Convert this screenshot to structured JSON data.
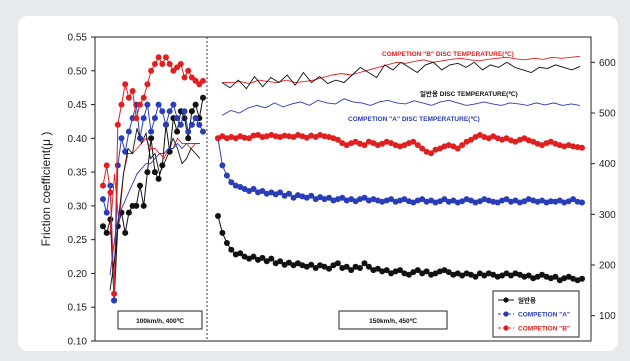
{
  "chart_data": {
    "type": "line",
    "ylabel": "Friction coefficient(μ )",
    "ylim": [
      0.1,
      0.55
    ],
    "yticks": [
      "0.10",
      "0.15",
      "0.20",
      "0.25",
      "0.30",
      "0.35",
      "0.40",
      "0.45",
      "0.50",
      "0.55"
    ],
    "y2lim": [
      50,
      650
    ],
    "y2ticks": [
      "100",
      "200",
      "300",
      "400",
      "500",
      "600"
    ],
    "grid": false,
    "legend_position": "bottom-right",
    "sections": [
      {
        "label": "100km/h, 400℃"
      },
      {
        "label": "150km/h, 450℃"
      }
    ],
    "temperature_labels": [
      {
        "text": "COMPETION \"B\" DISC TEMPERATURE(℃)",
        "color": "#e02020"
      },
      {
        "text": "일반용 DISC TEMPERATURE(℃)",
        "color": "#111111"
      },
      {
        "text": "COMPETION \"A\" DISC TEMPERATURE(℃)",
        "color": "#2a3db8"
      }
    ],
    "legend": [
      {
        "label": "일반용",
        "color": "#111111"
      },
      {
        "label": "COMPETION \"A\"",
        "color": "#2a3db8"
      },
      {
        "label": "COMPETION \"B\"",
        "color": "#e02020"
      }
    ],
    "series": [
      {
        "axis": "friction",
        "color": "#111111",
        "section1": [
          0.27,
          0.26,
          0.28,
          0.16,
          0.27,
          0.29,
          0.26,
          0.29,
          0.3,
          0.3,
          0.33,
          0.3,
          0.35,
          0.4,
          0.35,
          0.34,
          0.36,
          0.42,
          0.38,
          0.43,
          0.41,
          0.44,
          0.43,
          0.4,
          0.44,
          0.45,
          0.43,
          0.46
        ],
        "section2": [
          0.285,
          0.26,
          0.245,
          0.235,
          0.228,
          0.23,
          0.225,
          0.222,
          0.225,
          0.22,
          0.223,
          0.218,
          0.222,
          0.215,
          0.218,
          0.213,
          0.216,
          0.212,
          0.215,
          0.212,
          0.21,
          0.213,
          0.208,
          0.212,
          0.21,
          0.207,
          0.212,
          0.215,
          0.208,
          0.21,
          0.205,
          0.21,
          0.208,
          0.215,
          0.21,
          0.205,
          0.207,
          0.203,
          0.205,
          0.2,
          0.203,
          0.205,
          0.2,
          0.198,
          0.202,
          0.205,
          0.2,
          0.203,
          0.198,
          0.2,
          0.203,
          0.205,
          0.202,
          0.198,
          0.2,
          0.197,
          0.2,
          0.198,
          0.195,
          0.2,
          0.197,
          0.2,
          0.198,
          0.195,
          0.197,
          0.2,
          0.197,
          0.2,
          0.198,
          0.195,
          0.197,
          0.193,
          0.195,
          0.198,
          0.195,
          0.193,
          0.195,
          0.19,
          0.193,
          0.195,
          0.192,
          0.19,
          0.192
        ]
      },
      {
        "axis": "friction",
        "color": "#2a3db8",
        "section1": [
          0.31,
          0.29,
          0.33,
          0.16,
          0.36,
          0.4,
          0.38,
          0.41,
          0.43,
          0.45,
          0.4,
          0.43,
          0.45,
          0.41,
          0.43,
          0.45,
          0.44,
          0.42,
          0.44,
          0.45,
          0.43,
          0.42,
          0.44,
          0.41,
          0.42,
          0.43,
          0.42,
          0.41
        ],
        "section2": [
          0.4,
          0.36,
          0.345,
          0.335,
          0.33,
          0.328,
          0.325,
          0.322,
          0.325,
          0.32,
          0.322,
          0.318,
          0.32,
          0.317,
          0.32,
          0.315,
          0.318,
          0.312,
          0.316,
          0.314,
          0.312,
          0.315,
          0.31,
          0.313,
          0.31,
          0.312,
          0.308,
          0.31,
          0.312,
          0.308,
          0.31,
          0.307,
          0.31,
          0.312,
          0.308,
          0.31,
          0.308,
          0.306,
          0.308,
          0.31,
          0.306,
          0.308,
          0.31,
          0.307,
          0.305,
          0.308,
          0.31,
          0.306,
          0.308,
          0.305,
          0.307,
          0.31,
          0.306,
          0.308,
          0.305,
          0.307,
          0.31,
          0.308,
          0.305,
          0.307,
          0.31,
          0.308,
          0.306,
          0.305,
          0.308,
          0.31,
          0.306,
          0.308,
          0.305,
          0.307,
          0.31,
          0.308,
          0.306,
          0.308,
          0.305,
          0.307,
          0.306,
          0.308,
          0.305,
          0.307,
          0.31,
          0.306,
          0.305
        ]
      },
      {
        "axis": "friction",
        "color": "#e02020",
        "section1": [
          0.33,
          0.36,
          0.32,
          0.17,
          0.42,
          0.45,
          0.48,
          0.46,
          0.47,
          0.43,
          0.45,
          0.46,
          0.48,
          0.5,
          0.51,
          0.52,
          0.51,
          0.52,
          0.51,
          0.5,
          0.505,
          0.51,
          0.49,
          0.5,
          0.49,
          0.485,
          0.48,
          0.485
        ],
        "section2": [
          0.4,
          0.403,
          0.4,
          0.402,
          0.4,
          0.403,
          0.401,
          0.4,
          0.404,
          0.405,
          0.402,
          0.403,
          0.405,
          0.403,
          0.402,
          0.404,
          0.403,
          0.402,
          0.405,
          0.403,
          0.401,
          0.404,
          0.402,
          0.405,
          0.403,
          0.402,
          0.4,
          0.398,
          0.393,
          0.39,
          0.393,
          0.395,
          0.392,
          0.39,
          0.395,
          0.393,
          0.39,
          0.392,
          0.395,
          0.393,
          0.39,
          0.388,
          0.39,
          0.393,
          0.395,
          0.39,
          0.385,
          0.38,
          0.378,
          0.383,
          0.385,
          0.388,
          0.39,
          0.388,
          0.385,
          0.39,
          0.395,
          0.398,
          0.402,
          0.405,
          0.402,
          0.4,
          0.403,
          0.4,
          0.398,
          0.4,
          0.397,
          0.395,
          0.398,
          0.4,
          0.397,
          0.395,
          0.392,
          0.39,
          0.393,
          0.395,
          0.392,
          0.39,
          0.388,
          0.39,
          0.388,
          0.387,
          0.386
        ]
      },
      {
        "axis": "temperature",
        "color": "#e02020",
        "section1": [
          260,
          380,
          280,
          380,
          420,
          420,
          430,
          440,
          450,
          430,
          430,
          420,
          410,
          430,
          430,
          450,
          440,
          440,
          430,
          440,
          440
        ],
        "section2": [
          560,
          560,
          562,
          558,
          565,
          562,
          560,
          565,
          560,
          562,
          565,
          570,
          575,
          578,
          575,
          580,
          585,
          590,
          595,
          600,
          598,
          602,
          605,
          600,
          603,
          606,
          608,
          605,
          603,
          606,
          608,
          610,
          607,
          605,
          608,
          606,
          610,
          608,
          610,
          612
        ]
      },
      {
        "axis": "temperature",
        "color": "#111111",
        "section1": [
          150,
          210,
          300,
          380,
          430,
          420,
          470,
          440,
          460,
          410,
          420,
          380,
          400,
          420,
          450,
          430,
          400,
          410,
          430,
          420,
          410
        ],
        "section2": [
          560,
          550,
          565,
          548,
          572,
          552,
          570,
          560,
          575,
          555,
          580,
          560,
          572,
          558,
          565,
          560,
          575,
          590,
          580,
          570,
          595,
          585,
          600,
          590,
          580,
          595,
          600,
          585,
          595,
          598,
          590,
          600,
          585,
          595,
          590,
          600,
          590,
          585,
          580,
          590,
          588,
          595,
          590,
          585,
          592
        ]
      },
      {
        "axis": "temperature",
        "color": "#2a3db8",
        "section1": [
          180,
          250,
          300,
          320,
          340,
          360,
          380,
          390,
          400,
          400,
          410,
          420,
          420,
          430,
          430,
          440,
          430,
          440,
          440,
          440,
          440
        ],
        "section2": [
          495,
          505,
          500,
          510,
          515,
          510,
          520,
          512,
          518,
          522,
          515,
          525,
          520,
          518,
          528,
          522,
          520,
          515,
          522,
          525,
          520,
          518,
          524,
          520,
          515,
          522,
          525,
          520,
          515,
          518,
          522,
          518,
          515,
          520,
          518,
          515,
          520,
          516,
          520,
          515,
          518,
          515
        ]
      }
    ]
  }
}
